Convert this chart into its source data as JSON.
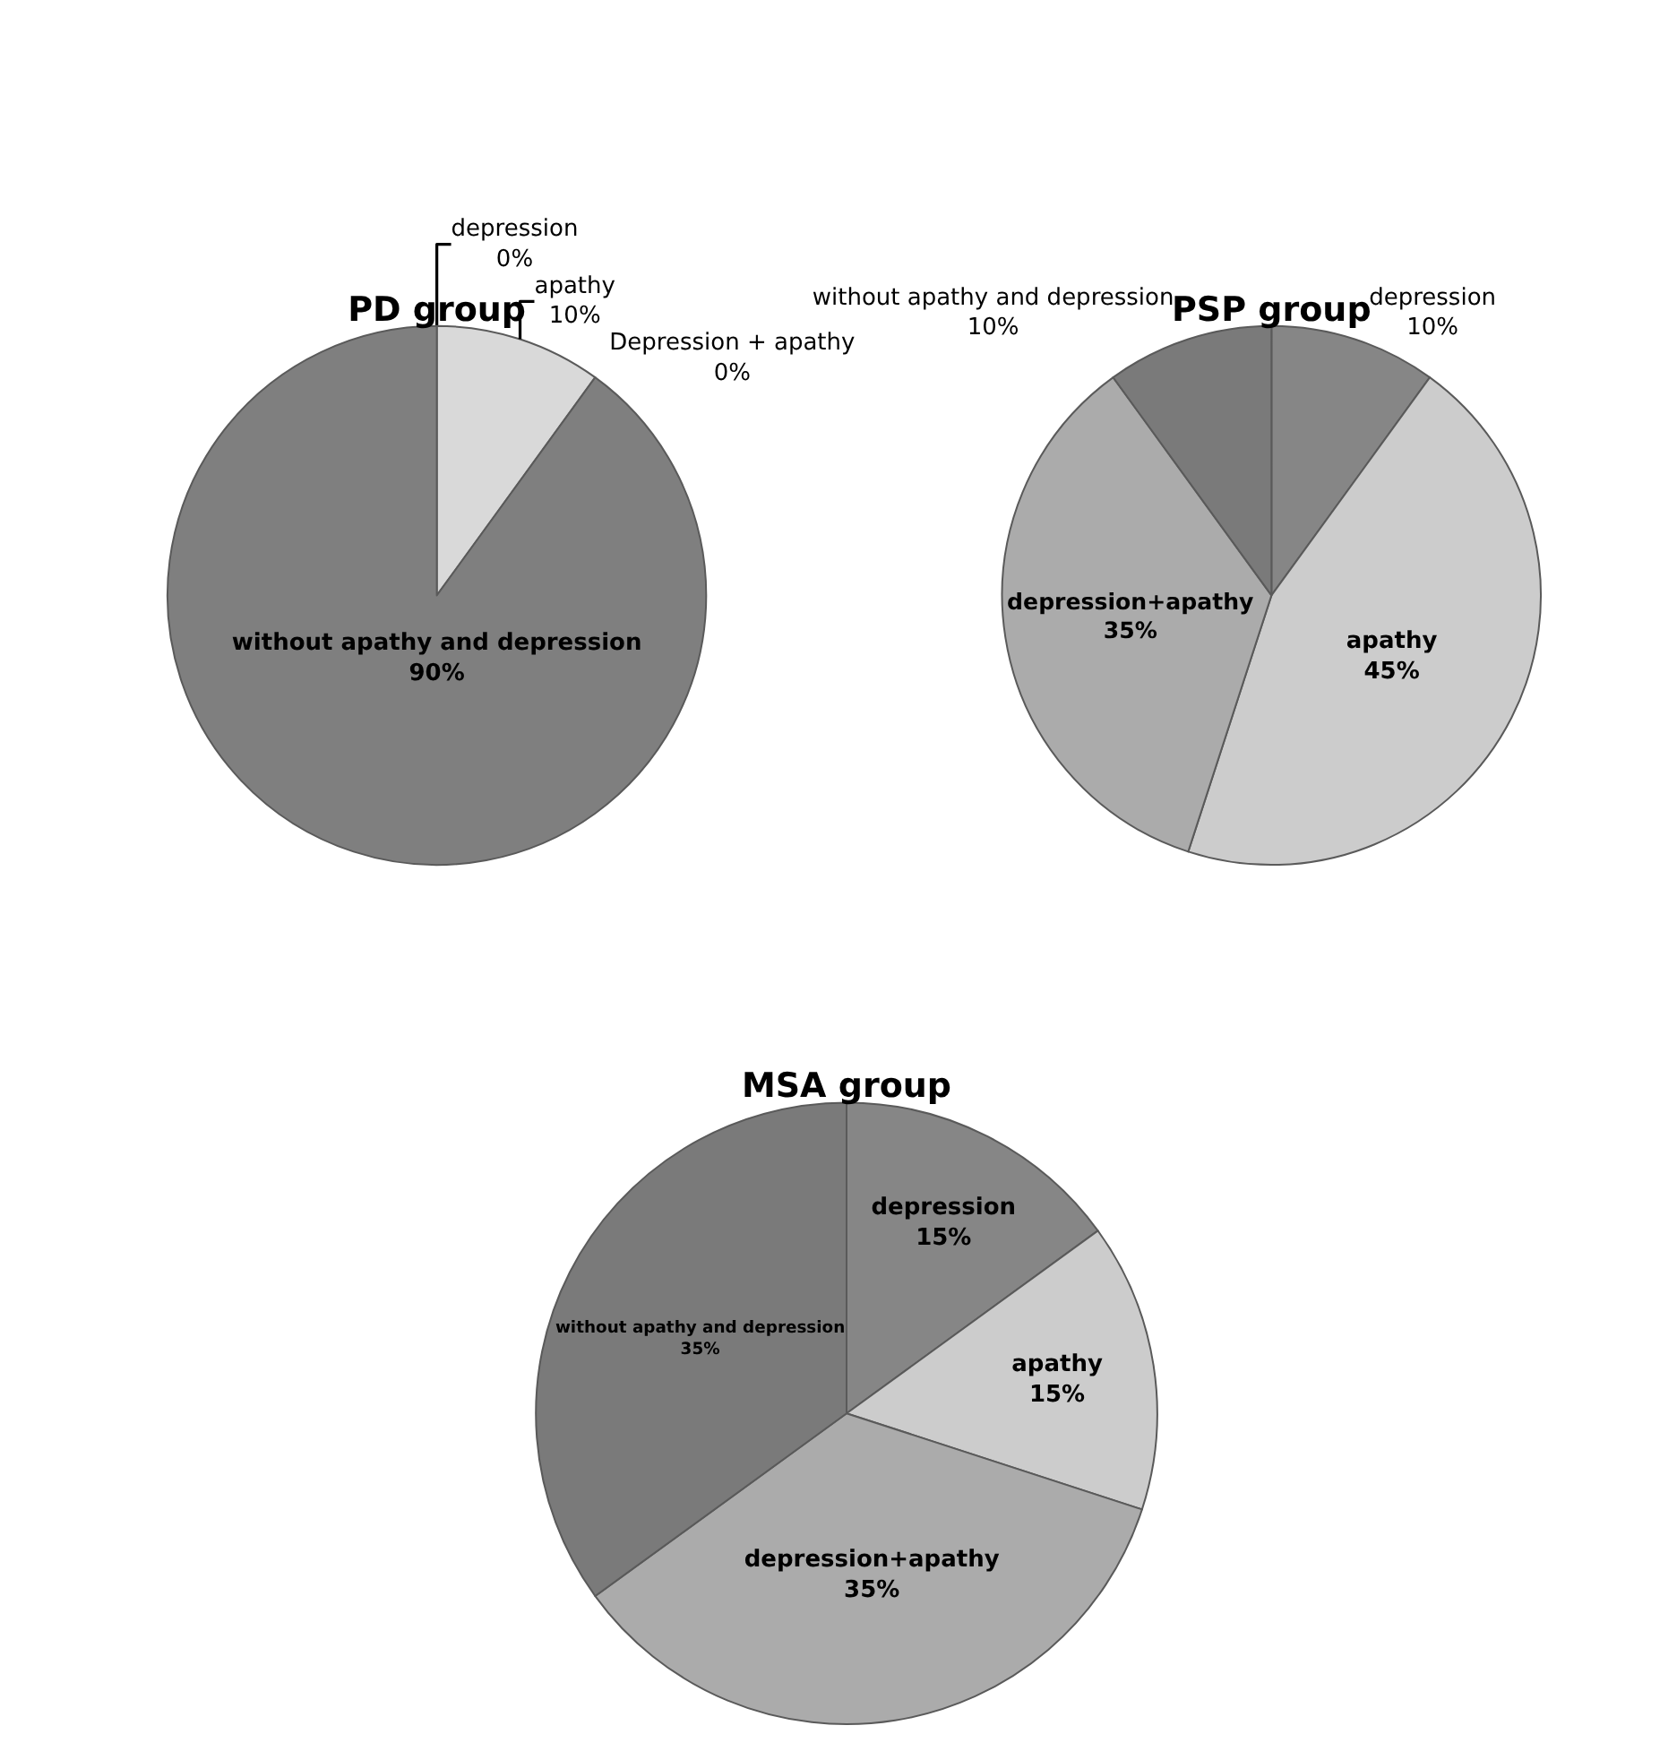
{
  "chart_data": [
    {
      "type": "pie",
      "title": "PD group",
      "categories": [
        "depression",
        "apathy",
        "Depression + apathy",
        "without apathy and depression"
      ],
      "values": [
        0,
        10,
        0,
        90
      ],
      "value_labels": [
        "0%",
        "10%",
        "0%",
        "90%"
      ],
      "colors": [
        "#8c8c8c",
        "#d9d9d9",
        "#b0b0b0",
        "#7f7f7f"
      ],
      "legend": false
    },
    {
      "type": "pie",
      "title": "PSP group",
      "categories": [
        "depression",
        "apathy",
        "depression+apathy",
        "without apathy and depression"
      ],
      "values": [
        10,
        45,
        35,
        10
      ],
      "value_labels": [
        "10%",
        "45%",
        "35%",
        "10%"
      ],
      "colors": [
        "#868686",
        "#cccccc",
        "#ababab",
        "#7a7a7a"
      ],
      "legend": false
    },
    {
      "type": "pie",
      "title": "MSA group",
      "categories": [
        "depression",
        "apathy",
        "depression+apathy",
        "without apathy and depression"
      ],
      "values": [
        15,
        15,
        35,
        35
      ],
      "value_labels": [
        "15%",
        "15%",
        "35%",
        "35%"
      ],
      "colors": [
        "#868686",
        "#cccccc",
        "#ababab",
        "#7a7a7a"
      ],
      "legend": false
    }
  ]
}
